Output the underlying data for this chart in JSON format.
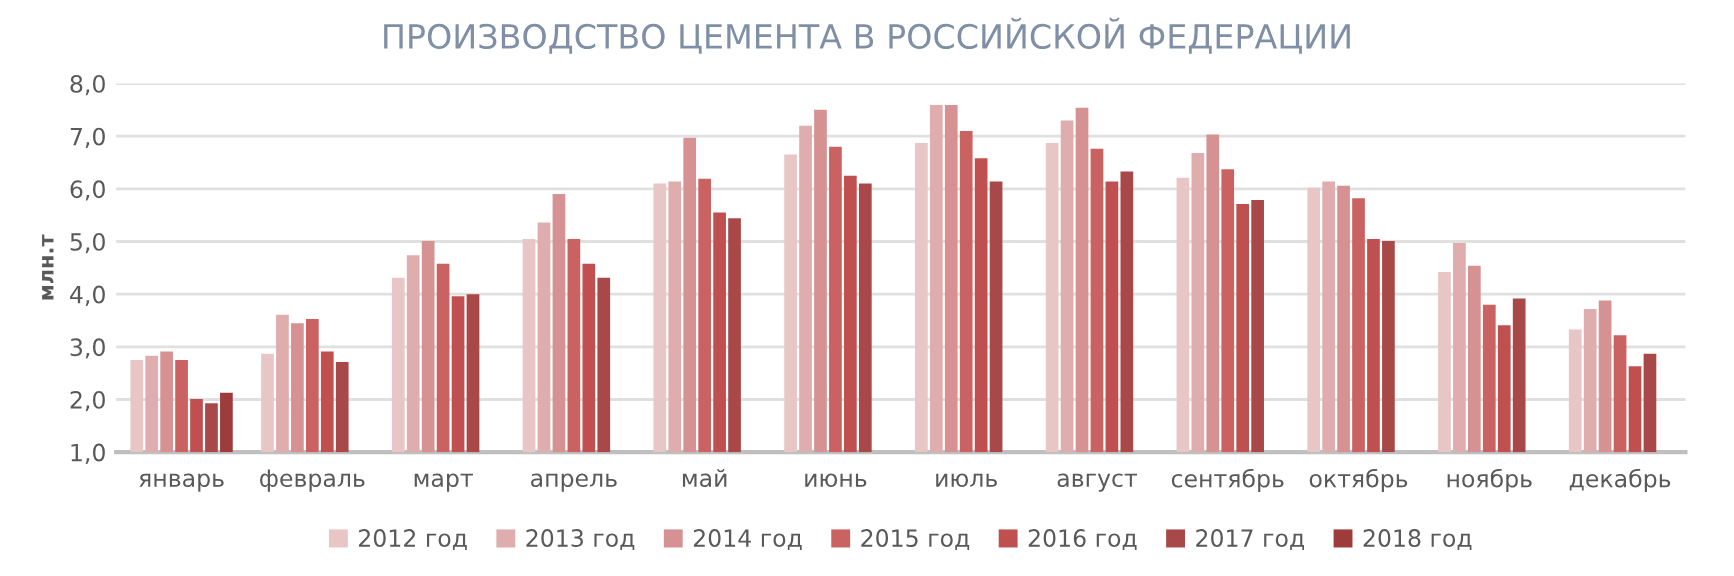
{
  "chart_data": {
    "type": "bar",
    "title": "ПРОИЗВОДСТВО ЦЕМЕНТА В РОССИЙСКОЙ ФЕДЕРАЦИИ",
    "ylabel": "млн.т",
    "categories": [
      "январь",
      "февраль",
      "март",
      "апрель",
      "май",
      "июнь",
      "июль",
      "август",
      "сентябрь",
      "октябрь",
      "ноябрь",
      "декабрь"
    ],
    "series": [
      {
        "name": "2012 год",
        "color": "#e9c6c6",
        "values": [
          2.75,
          2.87,
          4.31,
          5.05,
          6.1,
          6.65,
          6.87,
          6.87,
          6.21,
          6.02,
          4.42,
          3.33
        ]
      },
      {
        "name": "2013 год",
        "color": "#dfadad",
        "values": [
          2.83,
          3.61,
          4.74,
          5.36,
          6.14,
          7.2,
          7.59,
          7.3,
          6.68,
          6.14,
          4.97,
          3.72
        ]
      },
      {
        "name": "2014 год",
        "color": "#d69292",
        "values": [
          2.91,
          3.45,
          5.01,
          5.9,
          6.97,
          7.5,
          7.59,
          7.54,
          7.03,
          6.06,
          4.54,
          3.88
        ]
      },
      {
        "name": "2015 год",
        "color": "#cb6262",
        "values": [
          2.75,
          3.53,
          4.58,
          5.05,
          6.19,
          6.8,
          7.1,
          6.76,
          6.37,
          5.82,
          3.8,
          3.22
        ]
      },
      {
        "name": "2016 год",
        "color": "#c05050",
        "values": [
          2.01,
          2.91,
          3.96,
          4.58,
          5.55,
          6.25,
          6.58,
          6.14,
          5.71,
          5.05,
          3.41,
          2.63
        ]
      },
      {
        "name": "2017 год",
        "color": "#a94848",
        "values": [
          1.93,
          2.71,
          4.0,
          4.31,
          5.44,
          6.1,
          6.14,
          6.33,
          5.79,
          5.01,
          3.92,
          2.87
        ]
      },
      {
        "name": "2018 год",
        "color": "#9e3b3b",
        "values": [
          2.13,
          null,
          null,
          null,
          null,
          null,
          null,
          null,
          null,
          null,
          null,
          null
        ]
      }
    ],
    "ylim": [
      1.0,
      8.0
    ],
    "yticks": [
      {
        "value": 1.0,
        "label": "1,0"
      },
      {
        "value": 2.0,
        "label": "2,0"
      },
      {
        "value": 3.0,
        "label": "3,0"
      },
      {
        "value": 4.0,
        "label": "4,0"
      },
      {
        "value": 5.0,
        "label": "5,0"
      },
      {
        "value": 6.0,
        "label": "6,0"
      },
      {
        "value": 7.0,
        "label": "7,0"
      },
      {
        "value": 8.0,
        "label": "8,0"
      }
    ],
    "grid": "y",
    "legend": "bottom"
  }
}
